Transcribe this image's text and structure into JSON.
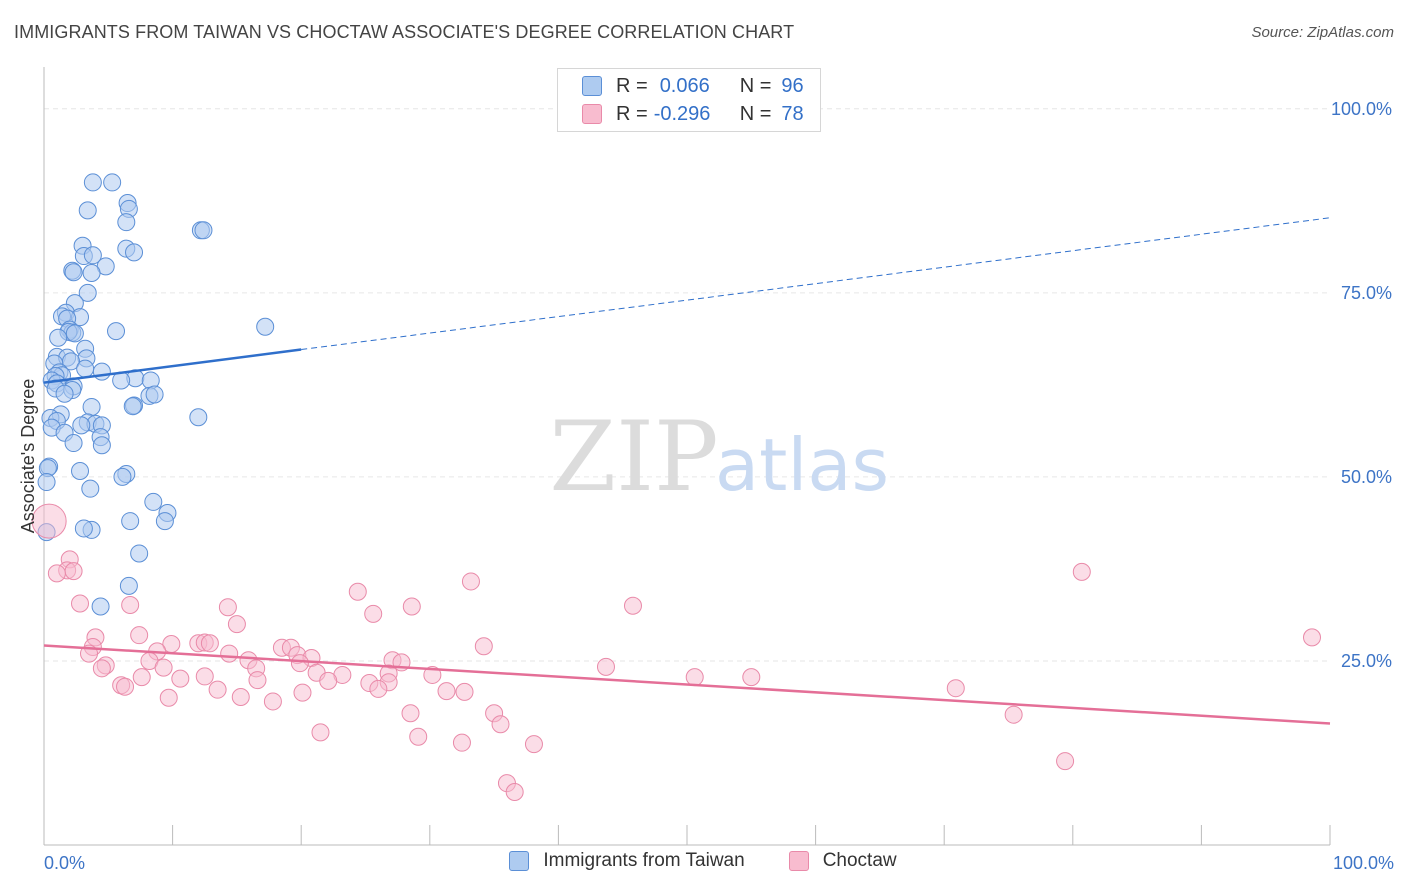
{
  "title": "IMMIGRANTS FROM TAIWAN VS CHOCTAW ASSOCIATE'S DEGREE CORRELATION CHART",
  "source": "Source: ZipAtlas.com",
  "watermark": {
    "zip": "ZIP",
    "atlas": "atlas"
  },
  "colors": {
    "blue_fill": "#aecbf0",
    "blue_stroke": "#5b8fd6",
    "blue_line": "#2f6fcb",
    "pink_fill": "#f8bccf",
    "pink_stroke": "#e98aa9",
    "pink_line": "#e46f97",
    "tick_text": "#3d74c6"
  },
  "legend": {
    "rows": [
      {
        "r_label": "R =",
        "r_value": "0.066",
        "n_label": "N =",
        "n_value": "96"
      },
      {
        "r_label": "R =",
        "r_value": "-0.296",
        "n_label": "N =",
        "n_value": "78"
      }
    ]
  },
  "chart_data": {
    "type": "scatter",
    "title": "IMMIGRANTS FROM TAIWAN VS CHOCTAW ASSOCIATE'S DEGREE CORRELATION CHART",
    "xlabel": "",
    "ylabel": "Associate's Degree",
    "xlim": [
      0,
      100
    ],
    "ylim": [
      0,
      105
    ],
    "x_tick_labels": [
      "0.0%",
      "100.0%"
    ],
    "y_ticks": [
      25,
      50,
      75,
      100
    ],
    "y_tick_labels": [
      "25.0%",
      "50.0%",
      "75.0%",
      "100.0%"
    ],
    "grid": true,
    "legend_position": "top-center",
    "series": [
      {
        "name": "Immigrants from Taiwan",
        "trend": {
          "x0": 0,
          "y0": 62.8,
          "x1": 20,
          "y1": 67.3,
          "dashed_to_x": 100,
          "dashed_to_y": 85.2
        },
        "points": [
          [
            3.8,
            90.0
          ],
          [
            5.3,
            90.0
          ],
          [
            3.4,
            86.2
          ],
          [
            6.5,
            87.2
          ],
          [
            6.6,
            86.4
          ],
          [
            6.4,
            84.6
          ],
          [
            12.2,
            83.5
          ],
          [
            12.4,
            83.5
          ],
          [
            3.0,
            81.4
          ],
          [
            6.4,
            81.0
          ],
          [
            7.0,
            80.5
          ],
          [
            3.1,
            80.0
          ],
          [
            3.8,
            80.1
          ],
          [
            2.2,
            78.0
          ],
          [
            2.3,
            77.8
          ],
          [
            4.8,
            78.6
          ],
          [
            3.7,
            77.7
          ],
          [
            3.4,
            75.0
          ],
          [
            2.4,
            73.6
          ],
          [
            1.7,
            72.3
          ],
          [
            1.4,
            71.8
          ],
          [
            2.8,
            71.7
          ],
          [
            1.8,
            71.5
          ],
          [
            17.2,
            70.4
          ],
          [
            5.6,
            69.8
          ],
          [
            2.0,
            70.0
          ],
          [
            2.2,
            69.6
          ],
          [
            1.9,
            69.7
          ],
          [
            2.4,
            69.5
          ],
          [
            1.1,
            68.9
          ],
          [
            3.2,
            67.4
          ],
          [
            1.0,
            66.3
          ],
          [
            1.8,
            66.2
          ],
          [
            3.3,
            66.1
          ],
          [
            2.1,
            65.7
          ],
          [
            0.8,
            65.4
          ],
          [
            3.2,
            64.7
          ],
          [
            1.2,
            64.2
          ],
          [
            1.4,
            63.8
          ],
          [
            0.9,
            63.7
          ],
          [
            4.5,
            64.3
          ],
          [
            7.1,
            63.4
          ],
          [
            0.6,
            63.1
          ],
          [
            1.0,
            62.7
          ],
          [
            2.3,
            62.3
          ],
          [
            6.0,
            63.1
          ],
          [
            0.9,
            62.0
          ],
          [
            8.3,
            63.1
          ],
          [
            2.2,
            61.8
          ],
          [
            8.2,
            61.0
          ],
          [
            8.6,
            61.2
          ],
          [
            1.6,
            61.3
          ],
          [
            7.0,
            59.7
          ],
          [
            6.9,
            59.6
          ],
          [
            3.7,
            59.5
          ],
          [
            1.3,
            58.5
          ],
          [
            0.5,
            58.0
          ],
          [
            1.0,
            57.6
          ],
          [
            3.4,
            57.4
          ],
          [
            4.0,
            57.2
          ],
          [
            12.0,
            58.1
          ],
          [
            0.6,
            56.7
          ],
          [
            4.5,
            57.0
          ],
          [
            2.9,
            57.0
          ],
          [
            1.6,
            56.0
          ],
          [
            4.4,
            55.4
          ],
          [
            4.5,
            54.3
          ],
          [
            2.3,
            54.6
          ],
          [
            0.4,
            51.4
          ],
          [
            0.3,
            51.2
          ],
          [
            2.8,
            50.8
          ],
          [
            6.4,
            50.4
          ],
          [
            6.1,
            50.0
          ],
          [
            0.2,
            49.3
          ],
          [
            3.6,
            48.4
          ],
          [
            8.5,
            46.6
          ],
          [
            9.6,
            45.1
          ],
          [
            9.4,
            44.0
          ],
          [
            6.7,
            44.0
          ],
          [
            3.7,
            42.8
          ],
          [
            3.1,
            43.0
          ],
          [
            0.2,
            42.5
          ],
          [
            7.4,
            39.6
          ],
          [
            6.6,
            35.2
          ],
          [
            4.4,
            32.4
          ]
        ]
      },
      {
        "name": "Choctaw",
        "trend": {
          "x0": 0,
          "y0": 27.1,
          "x1": 100,
          "y1": 16.5
        },
        "points": [
          [
            0.4,
            44.0
          ],
          [
            2.0,
            38.8
          ],
          [
            1.8,
            37.3
          ],
          [
            2.3,
            37.2
          ],
          [
            1.0,
            36.9
          ],
          [
            33.2,
            35.8
          ],
          [
            80.7,
            37.1
          ],
          [
            24.4,
            34.4
          ],
          [
            2.8,
            32.8
          ],
          [
            6.7,
            32.6
          ],
          [
            14.3,
            32.3
          ],
          [
            28.6,
            32.4
          ],
          [
            45.8,
            32.5
          ],
          [
            25.6,
            31.4
          ],
          [
            15.0,
            30.0
          ],
          [
            7.4,
            28.5
          ],
          [
            4.0,
            28.2
          ],
          [
            98.6,
            28.2
          ],
          [
            12.0,
            27.4
          ],
          [
            9.9,
            27.3
          ],
          [
            12.5,
            27.5
          ],
          [
            12.9,
            27.4
          ],
          [
            3.8,
            26.9
          ],
          [
            18.5,
            26.8
          ],
          [
            19.2,
            26.8
          ],
          [
            34.2,
            27.0
          ],
          [
            8.8,
            26.3
          ],
          [
            3.5,
            26.0
          ],
          [
            14.4,
            26.0
          ],
          [
            19.7,
            25.8
          ],
          [
            20.8,
            25.4
          ],
          [
            8.2,
            25.0
          ],
          [
            15.9,
            25.1
          ],
          [
            19.9,
            24.7
          ],
          [
            27.1,
            25.1
          ],
          [
            27.8,
            24.8
          ],
          [
            4.8,
            24.4
          ],
          [
            4.5,
            24.0
          ],
          [
            9.3,
            24.1
          ],
          [
            16.5,
            24.0
          ],
          [
            43.7,
            24.2
          ],
          [
            21.2,
            23.4
          ],
          [
            23.2,
            23.1
          ],
          [
            26.8,
            23.3
          ],
          [
            12.5,
            22.9
          ],
          [
            10.6,
            22.6
          ],
          [
            7.6,
            22.8
          ],
          [
            30.2,
            23.1
          ],
          [
            50.6,
            22.8
          ],
          [
            55.0,
            22.8
          ],
          [
            16.6,
            22.4
          ],
          [
            22.1,
            22.3
          ],
          [
            25.3,
            22.0
          ],
          [
            26.8,
            22.1
          ],
          [
            6.0,
            21.7
          ],
          [
            6.3,
            21.5
          ],
          [
            13.5,
            21.1
          ],
          [
            20.1,
            20.7
          ],
          [
            26.0,
            21.2
          ],
          [
            31.3,
            20.9
          ],
          [
            32.7,
            20.8
          ],
          [
            70.9,
            21.3
          ],
          [
            9.7,
            20.0
          ],
          [
            15.3,
            20.1
          ],
          [
            17.8,
            19.5
          ],
          [
            28.5,
            17.9
          ],
          [
            35.0,
            17.9
          ],
          [
            35.5,
            16.4
          ],
          [
            75.4,
            17.7
          ],
          [
            21.5,
            15.3
          ],
          [
            29.1,
            14.7
          ],
          [
            32.5,
            13.9
          ],
          [
            38.1,
            13.7
          ],
          [
            79.4,
            11.4
          ],
          [
            36.0,
            8.4
          ],
          [
            36.6,
            7.2
          ]
        ]
      }
    ]
  }
}
